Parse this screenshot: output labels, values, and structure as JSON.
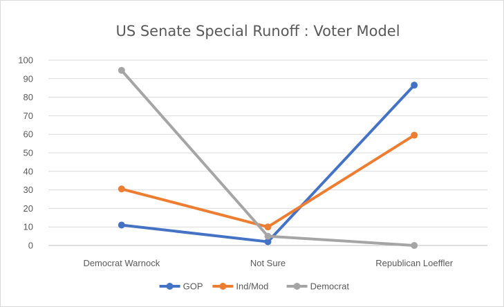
{
  "chart_data": {
    "type": "line",
    "title": "US Senate Special Runoff : Voter Model",
    "categories": [
      "Democrat Warnock",
      "Not Sure",
      "Republican Loeffler"
    ],
    "ylim": [
      0,
      100
    ],
    "yticks": [
      0,
      10,
      20,
      30,
      40,
      50,
      60,
      70,
      80,
      90,
      100
    ],
    "grid": true,
    "legend_position": "bottom",
    "series": [
      {
        "name": "GOP",
        "values": [
          11,
          2,
          86.5
        ],
        "color": "#4472c4"
      },
      {
        "name": "Ind/Mod",
        "values": [
          30.5,
          10,
          59.5
        ],
        "color": "#ed7d31"
      },
      {
        "name": "Democrat",
        "values": [
          94.5,
          5,
          0
        ],
        "color": "#a5a5a5"
      }
    ]
  }
}
